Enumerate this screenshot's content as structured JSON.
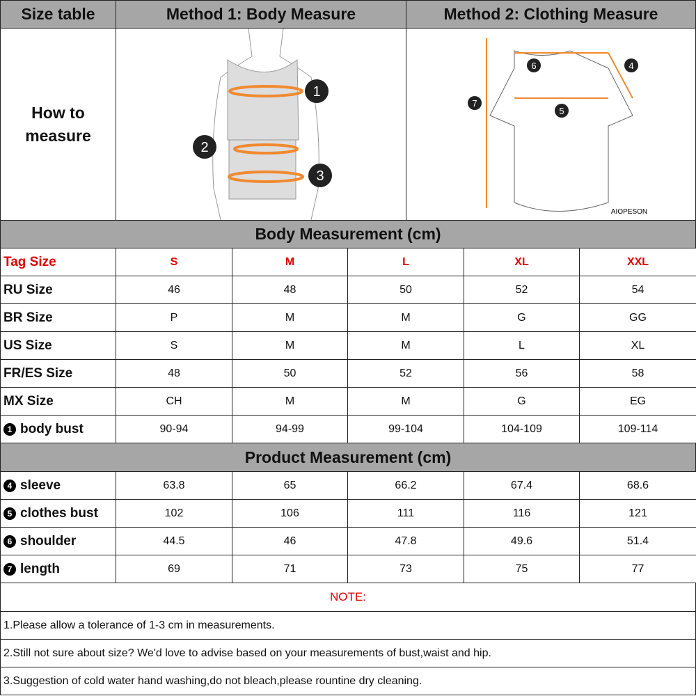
{
  "header": {
    "size_table": "Size table",
    "method1": "Method 1: Body  Measure",
    "method2": "Method 2: Clothing Measure"
  },
  "how_to": {
    "line1": "How to",
    "line2": "measure"
  },
  "illustration": {
    "body_markers": [
      "1",
      "2",
      "3"
    ],
    "shirt_markers": [
      "4",
      "5",
      "6",
      "7"
    ],
    "brand": "AIOPESON",
    "accent_color": "#f08a30"
  },
  "body_section": "Body Measurement (cm)",
  "sizes": [
    "S",
    "M",
    "L",
    "XL",
    "XXL"
  ],
  "tag_label": "Tag Size",
  "body_rows": [
    {
      "label": "RU Size",
      "values": [
        "46",
        "48",
        "50",
        "52",
        "54"
      ]
    },
    {
      "label": "BR Size",
      "values": [
        "P",
        "M",
        "M",
        "G",
        "GG"
      ]
    },
    {
      "label": "US Size",
      "values": [
        "S",
        "M",
        "M",
        "L",
        "XL"
      ]
    },
    {
      "label": "FR/ES Size",
      "values": [
        "48",
        "50",
        "52",
        "56",
        "58"
      ]
    },
    {
      "label": "MX Size",
      "values": [
        "CH",
        "M",
        "M",
        "G",
        "EG"
      ]
    },
    {
      "icon": "1",
      "label": "body bust",
      "values": [
        "90-94",
        "94-99",
        "99-104",
        "104-109",
        "109-114"
      ]
    }
  ],
  "product_section": "Product Measurement (cm)",
  "product_rows": [
    {
      "icon": "4",
      "label": "sleeve",
      "values": [
        "63.8",
        "65",
        "66.2",
        "67.4",
        "68.6"
      ]
    },
    {
      "icon": "5",
      "label": "clothes bust",
      "values": [
        "102",
        "106",
        "111",
        "116",
        "121"
      ]
    },
    {
      "icon": "6",
      "label": "shoulder",
      "values": [
        "44.5",
        "46",
        "47.8",
        "49.6",
        "51.4"
      ]
    },
    {
      "icon": "7",
      "label": "length",
      "values": [
        "69",
        "71",
        "73",
        "75",
        "77"
      ]
    }
  ],
  "note_title": "NOTE:",
  "notes": [
    "1.Please allow a tolerance of 1-3 cm in measurements.",
    "2.Still not sure about size? We'd love to advise based on your measurements of bust,waist and hip.",
    "3.Suggestion of cold water hand washing,do not bleach,please rountine dry cleaning."
  ]
}
